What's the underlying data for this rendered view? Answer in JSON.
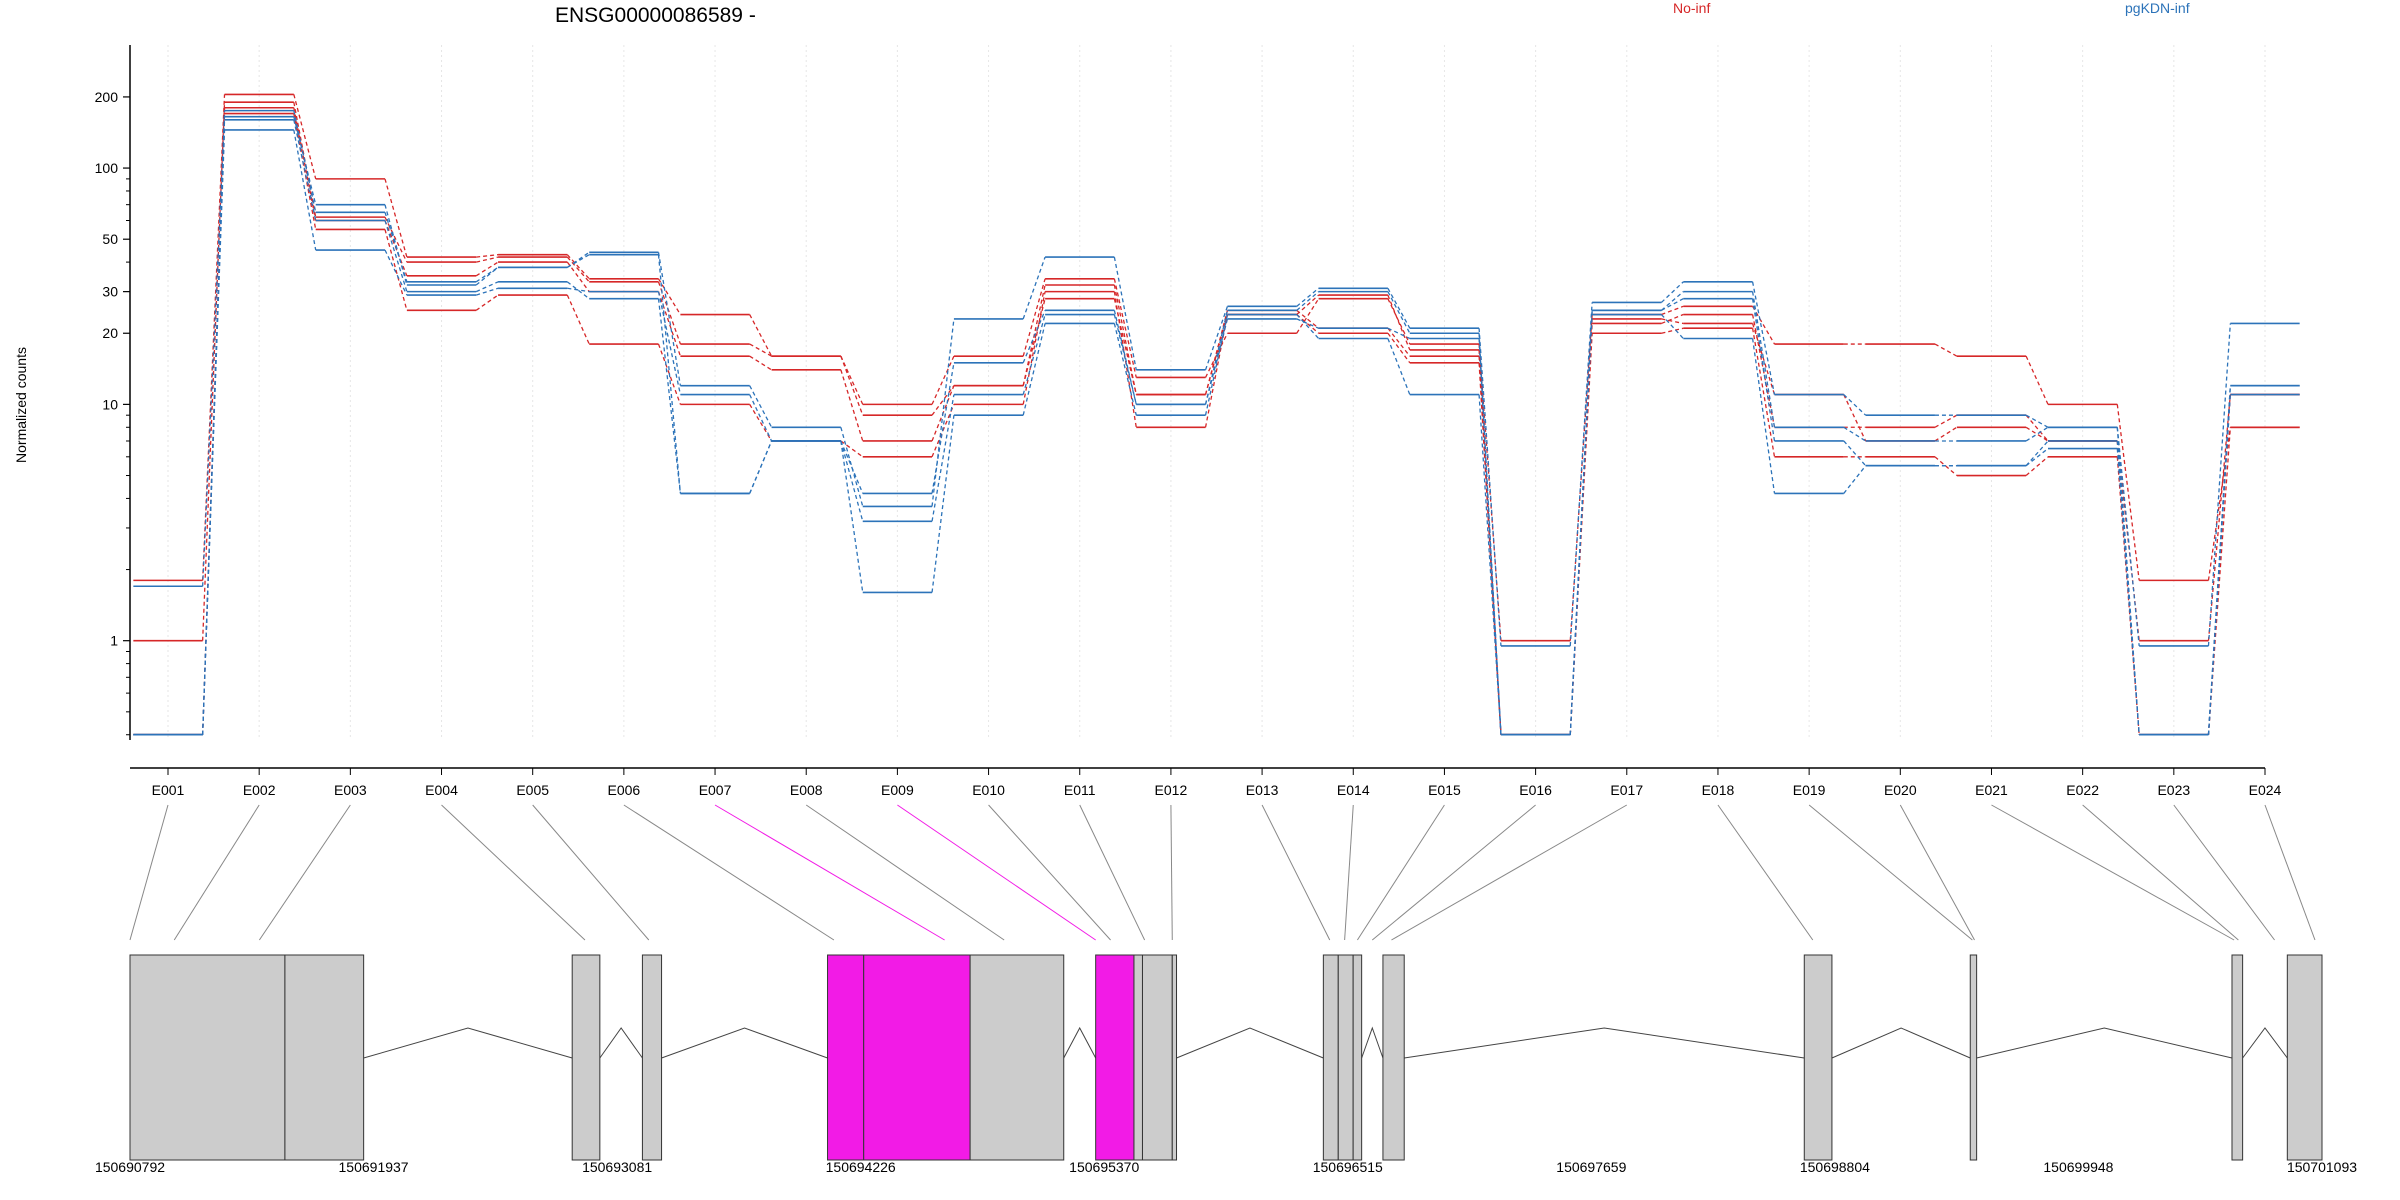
{
  "chart_data": {
    "type": "line",
    "title": "ENSG00000086589 -",
    "ylabel": "Normalized counts",
    "xlabel": "",
    "yscale": "log",
    "ylim": [
      0.38,
      260
    ],
    "y_ticks": [
      1,
      10,
      20,
      30,
      50,
      100,
      200
    ],
    "grid": "vertical dotted",
    "legend": [
      "No-inf",
      "pgKDN-inf"
    ],
    "legend_placement": "top-right",
    "colors": {
      "No-inf": "#d62728",
      "pgKDN-inf": "#2c73b9",
      "highlight": "#f21be6",
      "exon": "#cccccc"
    },
    "categories": [
      "E001",
      "E002",
      "E003",
      "E004",
      "E005",
      "E006",
      "E007",
      "E008",
      "E009",
      "E010",
      "E011",
      "E012",
      "E013",
      "E014",
      "E015",
      "E016",
      "E017",
      "E018",
      "E019",
      "E020",
      "E021",
      "E022",
      "E023",
      "E024"
    ],
    "series": [
      {
        "name": "No-inf",
        "values": [
          1.8,
          205,
          90,
          42,
          43,
          34,
          24,
          16,
          10,
          16,
          34,
          13,
          20,
          28,
          18,
          1.0,
          24,
          26,
          18,
          18,
          16,
          10,
          1.8,
          8
        ]
      },
      {
        "name": "No-inf",
        "values": [
          1.0,
          190,
          62,
          40,
          42,
          33,
          18,
          16,
          9,
          12,
          32,
          11,
          24,
          29,
          17,
          0.4,
          22,
          24,
          8,
          8,
          9,
          7,
          1.0,
          11
        ]
      },
      {
        "name": "No-inf",
        "values": [
          0.4,
          180,
          60,
          35,
          40,
          30,
          16,
          14,
          7,
          12,
          28,
          11,
          25,
          21,
          16,
          0.4,
          23,
          22,
          11,
          7,
          8,
          7,
          0.4,
          11
        ]
      },
      {
        "name": "No-inf",
        "values": [
          0.4,
          170,
          55,
          25,
          29,
          18,
          10,
          7,
          6,
          10,
          30,
          8,
          24,
          20,
          15,
          0.4,
          20,
          21,
          6,
          6,
          5,
          6,
          0.4,
          8
        ]
      },
      {
        "name": "pgKDN-inf",
        "values": [
          1.7,
          165,
          70,
          32,
          38,
          44,
          12,
          8,
          3.7,
          23,
          42,
          14,
          26,
          31,
          21,
          0.95,
          27,
          33,
          11,
          9,
          9,
          8,
          0.95,
          22
        ]
      },
      {
        "name": "pgKDN-inf",
        "values": [
          0.4,
          175,
          65,
          33,
          38,
          43,
          4.2,
          7,
          4.2,
          15,
          25,
          10,
          25,
          30,
          20,
          0.4,
          25,
          30,
          8,
          7,
          7,
          8,
          0.4,
          12
        ]
      },
      {
        "name": "pgKDN-inf",
        "values": [
          0.4,
          160,
          60,
          30,
          33,
          28,
          4.2,
          7,
          3.2,
          11,
          24,
          10,
          23,
          21,
          19,
          0.4,
          25,
          28,
          7,
          5.5,
          5.5,
          7,
          0.4,
          12
        ]
      },
      {
        "name": "pgKDN-inf",
        "values": [
          0.4,
          145,
          45,
          29,
          31,
          30,
          11,
          7,
          1.6,
          9,
          22,
          9,
          24,
          19,
          11,
          0.4,
          24,
          19,
          4.2,
          5.5,
          5.5,
          6.5,
          0.4,
          11
        ]
      }
    ],
    "coordinate_labels": [
      "150690792",
      "150691937",
      "150693081",
      "150694226",
      "150695370",
      "150696515",
      "150697659",
      "150698804",
      "150699948",
      "150701093"
    ],
    "genomic_range": [
      150690792,
      150701093
    ],
    "exons": [
      {
        "start": 150690792,
        "end": 150691520,
        "highlight": false
      },
      {
        "start": 150691520,
        "end": 150691890,
        "highlight": false
      },
      {
        "start": 150692870,
        "end": 150693000,
        "highlight": false
      },
      {
        "start": 150693200,
        "end": 150693290,
        "highlight": false
      },
      {
        "start": 150694070,
        "end": 150694240,
        "highlight": true
      },
      {
        "start": 150694240,
        "end": 150694740,
        "highlight": true
      },
      {
        "start": 150694740,
        "end": 150695180,
        "highlight": false
      },
      {
        "start": 150695330,
        "end": 150695510,
        "highlight": true
      },
      {
        "start": 150695510,
        "end": 150695550,
        "highlight": false
      },
      {
        "start": 150695550,
        "end": 150695690,
        "highlight": false
      },
      {
        "start": 150695690,
        "end": 150695710,
        "highlight": false
      },
      {
        "start": 150696400,
        "end": 150696470,
        "highlight": false
      },
      {
        "start": 150696470,
        "end": 150696540,
        "highlight": false
      },
      {
        "start": 150696540,
        "end": 150696580,
        "highlight": false
      },
      {
        "start": 150696680,
        "end": 150696780,
        "highlight": false
      },
      {
        "start": 150698660,
        "end": 150698790,
        "highlight": false
      },
      {
        "start": 150699440,
        "end": 150699470,
        "highlight": false
      },
      {
        "start": 150700670,
        "end": 150700720,
        "highlight": false
      },
      {
        "start": 150700930,
        "end": 150701093,
        "highlight": false
      }
    ]
  }
}
